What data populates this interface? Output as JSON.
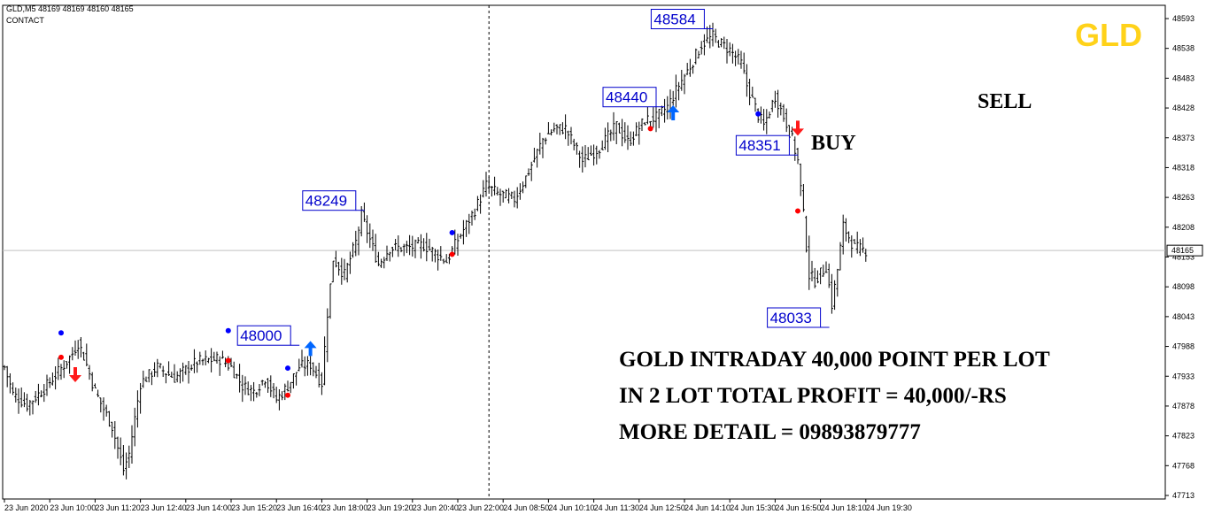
{
  "header": {
    "symbol_line": "GLD,M5  48169 48169 48160 48165",
    "sub_line": "CONTACT"
  },
  "watermark": {
    "text": "GLD",
    "color": "#ffd21a"
  },
  "chart_data": {
    "type": "ohlc",
    "symbol": "GLD",
    "timeframe": "M5",
    "current_price": 48165,
    "ylim": [
      47740,
      48610
    ],
    "y_ticks": [
      "48593",
      "48538",
      "48483",
      "48428",
      "48373",
      "48318",
      "48263",
      "48208",
      "48153",
      "48098",
      "48043",
      "47988",
      "47933",
      "47878",
      "47823",
      "47768",
      "47713"
    ],
    "y_tick_values": [
      48593,
      48538,
      48483,
      48428,
      48373,
      48318,
      48263,
      48208,
      48153,
      48098,
      48043,
      47988,
      47933,
      47878,
      47823,
      47768,
      47713
    ],
    "x_labels": [
      "23 Jun 2020",
      "23 Jun 10:00",
      "23 Jun 11:20",
      "23 Jun 12:40",
      "23 Jun 14:00",
      "23 Jun 15:20",
      "23 Jun 16:40",
      "23 Jun 18:00",
      "23 Jun 19:20",
      "23 Jun 20:40",
      "23 Jun 22:00",
      "24 Jun 08:50",
      "24 Jun 10:10",
      "24 Jun 11:30",
      "24 Jun 12:50",
      "24 Jun 14:10",
      "24 Jun 15:30",
      "24 Jun 16:50",
      "24 Jun 18:10",
      "24 Jun 19:30"
    ],
    "x_label_index": [
      0,
      16,
      32,
      48,
      64,
      80,
      96,
      112,
      128,
      144,
      160,
      176,
      192,
      208,
      224,
      240,
      256,
      272,
      288,
      304
    ],
    "session_break_index": 171,
    "bar_count": 305,
    "close_path": [
      [
        0,
        47950
      ],
      [
        3,
        47900
      ],
      [
        8,
        47880
      ],
      [
        14,
        47910
      ],
      [
        22,
        47960
      ],
      [
        24,
        47975
      ],
      [
        26,
        47995
      ],
      [
        28,
        47970
      ],
      [
        32,
        47905
      ],
      [
        38,
        47840
      ],
      [
        42,
        47760
      ],
      [
        44,
        47790
      ],
      [
        48,
        47920
      ],
      [
        54,
        47950
      ],
      [
        60,
        47930
      ],
      [
        68,
        47960
      ],
      [
        76,
        47965
      ],
      [
        80,
        47950
      ],
      [
        84,
        47915
      ],
      [
        88,
        47905
      ],
      [
        92,
        47930
      ],
      [
        96,
        47890
      ],
      [
        100,
        47915
      ],
      [
        104,
        47950
      ],
      [
        108,
        47955
      ],
      [
        112,
        47920
      ],
      [
        114,
        48050
      ],
      [
        116,
        48150
      ],
      [
        120,
        48120
      ],
      [
        124,
        48180
      ],
      [
        126,
        48230
      ],
      [
        128,
        48200
      ],
      [
        132,
        48140
      ],
      [
        136,
        48170
      ],
      [
        142,
        48170
      ],
      [
        148,
        48175
      ],
      [
        156,
        48145
      ],
      [
        160,
        48185
      ],
      [
        166,
        48240
      ],
      [
        170,
        48285
      ],
      [
        174,
        48270
      ],
      [
        180,
        48260
      ],
      [
        184,
        48300
      ],
      [
        190,
        48370
      ],
      [
        194,
        48390
      ],
      [
        198,
        48390
      ],
      [
        204,
        48330
      ],
      [
        210,
        48355
      ],
      [
        216,
        48395
      ],
      [
        220,
        48365
      ],
      [
        226,
        48405
      ],
      [
        230,
        48410
      ],
      [
        234,
        48430
      ],
      [
        238,
        48470
      ],
      [
        242,
        48505
      ],
      [
        246,
        48545
      ],
      [
        250,
        48560
      ],
      [
        252,
        48550
      ],
      [
        256,
        48535
      ],
      [
        260,
        48510
      ],
      [
        262,
        48470
      ],
      [
        266,
        48415
      ],
      [
        268,
        48395
      ],
      [
        272,
        48450
      ],
      [
        276,
        48400
      ],
      [
        278,
        48370
      ],
      [
        280,
        48330
      ],
      [
        282,
        48230
      ],
      [
        284,
        48120
      ],
      [
        286,
        48110
      ],
      [
        290,
        48135
      ],
      [
        292,
        48065
      ],
      [
        294,
        48130
      ],
      [
        296,
        48210
      ],
      [
        300,
        48170
      ],
      [
        304,
        48165
      ]
    ],
    "price_labels": [
      {
        "text": "48584",
        "value": 48584,
        "index": 247
      },
      {
        "text": "48440",
        "value": 48440,
        "index": 230
      },
      {
        "text": "48351",
        "value": 48351,
        "index": 277
      },
      {
        "text": "48249",
        "value": 48249,
        "index": 124
      },
      {
        "text": "48000",
        "value": 48000,
        "index": 101
      },
      {
        "text": "48033",
        "value": 48033,
        "index": 288
      }
    ],
    "buy_arrows": [
      {
        "index": 108,
        "value": 47985
      },
      {
        "index": 236,
        "value": 48420
      }
    ],
    "sell_arrows": [
      {
        "index": 25,
        "value": 47935
      },
      {
        "index": 280,
        "value": 48390
      }
    ],
    "dots": [
      {
        "index": 20,
        "value": 48013,
        "color": "#0000ff"
      },
      {
        "index": 20,
        "value": 47968,
        "color": "#ff0000"
      },
      {
        "index": 79,
        "value": 48017,
        "color": "#0000ff"
      },
      {
        "index": 79,
        "value": 47962,
        "color": "#ff0000"
      },
      {
        "index": 100,
        "value": 47948,
        "color": "#0000ff"
      },
      {
        "index": 100,
        "value": 47898,
        "color": "#ff0000"
      },
      {
        "index": 158,
        "value": 48198,
        "color": "#0000ff"
      },
      {
        "index": 158,
        "value": 48158,
        "color": "#ff0000"
      },
      {
        "index": 228,
        "value": 48440,
        "color": "#0000ff"
      },
      {
        "index": 228,
        "value": 48390,
        "color": "#ff0000"
      },
      {
        "index": 266,
        "value": 48417,
        "color": "#0000ff"
      },
      {
        "index": 266,
        "value": 48358,
        "color": "#0000ff"
      },
      {
        "index": 280,
        "value": 48238,
        "color": "#ff0000"
      }
    ],
    "annotations": {
      "buy": "BUY",
      "sell": "SELL",
      "line1": "GOLD INTRADAY 40,000 POINT PER LOT",
      "line2": "IN 2 LOT TOTAL PROFIT = 40,000/-RS",
      "line3": "MORE DETAIL = 09893879777"
    },
    "colors": {
      "bars": "#000000",
      "buy_arrow": "#0066ff",
      "sell_arrow": "#ff1a1a",
      "label": "#0000cc",
      "current_price_line": "#c0c0c0"
    }
  }
}
